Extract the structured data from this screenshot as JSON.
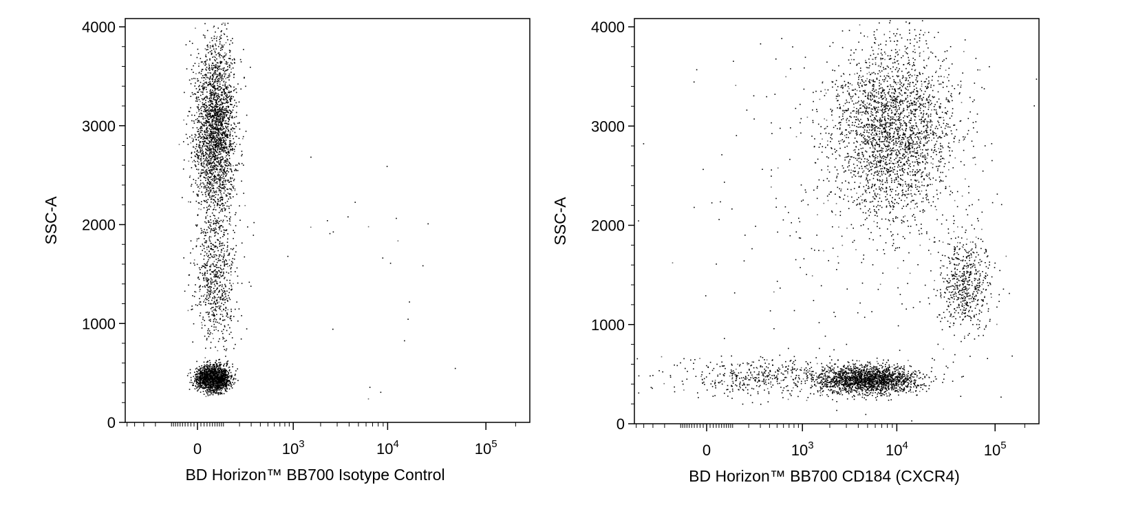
{
  "chart_data": [
    {
      "type": "scatter",
      "xlabel": "BD Horizon™ BB700 Isotype Control",
      "ylabel": "SSC-A",
      "x_scale": "biexponential",
      "ylim": [
        0,
        4000
      ],
      "y_ticks": [
        "0",
        "1000",
        "2000",
        "3000",
        "4000"
      ],
      "x_ticks": [
        {
          "base": "0",
          "exp": ""
        },
        {
          "base": "10",
          "exp": "3"
        },
        {
          "base": "10",
          "exp": "4"
        },
        {
          "base": "10",
          "exp": "5"
        }
      ],
      "grid": false,
      "populations": [
        {
          "x_center": 50,
          "y_center": 450,
          "x_spread": 55,
          "y_spread": 60,
          "count": 2200
        },
        {
          "x_center": 60,
          "y_center": 2950,
          "x_spread": 75,
          "y_spread": 450,
          "count": 2400
        },
        {
          "x_center": 60,
          "y_center": 1450,
          "x_spread": 75,
          "y_spread": 350,
          "count": 650
        },
        {
          "x_center": 2500,
          "y_center": 1500,
          "x_spread": 3000,
          "y_spread": 800,
          "count": 35
        }
      ]
    },
    {
      "type": "scatter",
      "xlabel": "BD Horizon™ BB700 CD184 (CXCR4)",
      "ylabel": "SSC-A",
      "x_scale": "biexponential",
      "ylim": [
        0,
        4000
      ],
      "y_ticks": [
        "0",
        "1000",
        "2000",
        "3000",
        "4000"
      ],
      "x_ticks": [
        {
          "base": "0",
          "exp": ""
        },
        {
          "base": "10",
          "exp": "3"
        },
        {
          "base": "10",
          "exp": "4"
        },
        {
          "base": "10",
          "exp": "5"
        }
      ],
      "grid": false,
      "populations": [
        {
          "x_center": 5000,
          "y_center": 450,
          "x_spread": 4000,
          "y_spread": 70,
          "count": 1900
        },
        {
          "x_center": 300,
          "y_center": 480,
          "x_spread": 700,
          "y_spread": 90,
          "count": 450
        },
        {
          "x_center": 9000,
          "y_center": 2950,
          "x_spread": 8000,
          "y_spread": 450,
          "count": 2600
        },
        {
          "x_center": 50000,
          "y_center": 1400,
          "x_spread": 25000,
          "y_spread": 260,
          "count": 550
        },
        {
          "x_center": 3000,
          "y_center": 2200,
          "x_spread": 5000,
          "y_spread": 1000,
          "count": 250
        }
      ]
    }
  ]
}
